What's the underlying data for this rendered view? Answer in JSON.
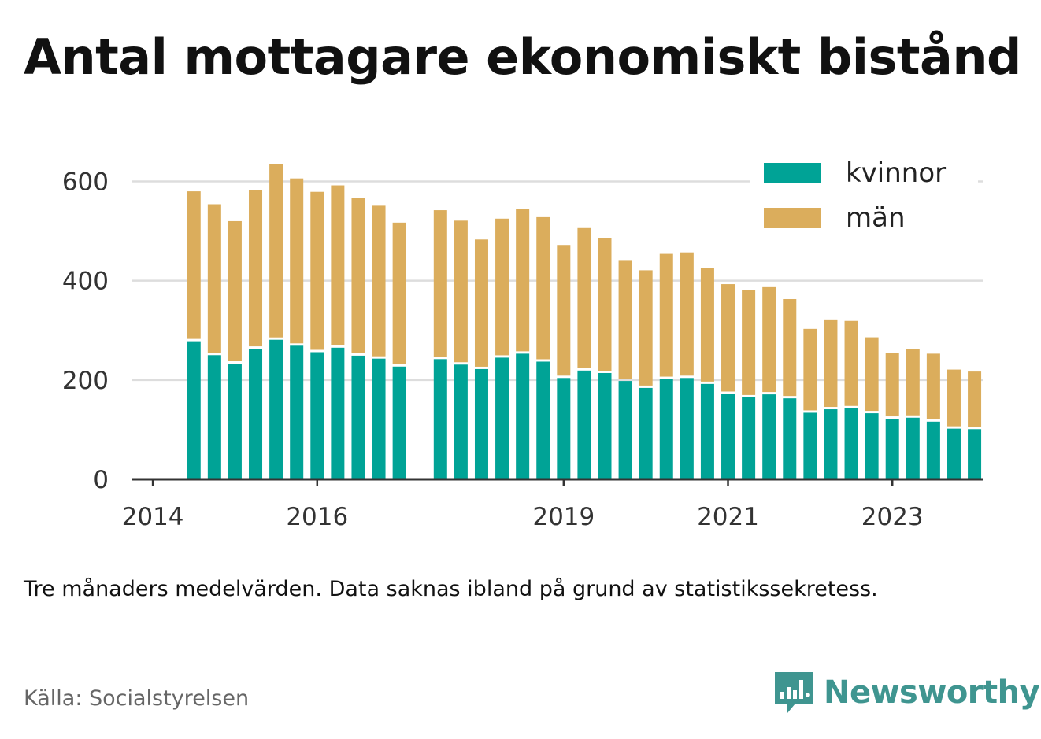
{
  "header": {
    "title": "Antal mottagare ekonomiskt bistånd"
  },
  "footer": {
    "note": "Tre månaders medelvärden. Data saknas ibland på grund av statistikssekretess.",
    "source": "Källa: Socialstyrelsen",
    "brand": "Newsworthy"
  },
  "colors": {
    "kvinnor": "#00a396",
    "man": "#dbad5c",
    "grid": "#dddddd",
    "axis": "#333333",
    "brand": "#3f9590"
  },
  "chart_data": {
    "type": "bar",
    "stacked": true,
    "ylim": [
      0,
      680
    ],
    "yticks": [
      "0",
      "200",
      "400",
      "600"
    ],
    "xticks": [
      "2014",
      "2016",
      "2019",
      "2021",
      "2023"
    ],
    "xlim": [
      2013.75,
      2024.1
    ],
    "grid": true,
    "legend_position": "top-right",
    "x": [
      2014.5,
      2014.75,
      2015.0,
      2015.25,
      2015.5,
      2015.75,
      2016.0,
      2016.25,
      2016.5,
      2016.75,
      2017.0,
      2017.5,
      2017.75,
      2018.0,
      2018.25,
      2018.5,
      2018.75,
      2019.0,
      2019.25,
      2019.5,
      2019.75,
      2020.0,
      2020.25,
      2020.5,
      2020.75,
      2021.0,
      2021.25,
      2021.5,
      2021.75,
      2022.0,
      2022.25,
      2022.5,
      2022.75,
      2023.0,
      2023.25,
      2023.5,
      2023.75,
      2024.0
    ],
    "series": [
      {
        "name": "kvinnor",
        "color": "#00a396",
        "values": [
          278,
          250,
          233,
          263,
          281,
          269,
          256,
          265,
          249,
          243,
          227,
          242,
          231,
          222,
          245,
          253,
          237,
          204,
          219,
          214,
          198,
          184,
          202,
          204,
          192,
          172,
          165,
          171,
          163,
          134,
          141,
          143,
          133,
          122,
          124,
          116,
          102,
          101
        ]
      },
      {
        "name": "män",
        "color": "#dbad5c",
        "values": [
          302,
          304,
          287,
          319,
          354,
          337,
          323,
          327,
          318,
          308,
          290,
          300,
          290,
          261,
          280,
          292,
          291,
          268,
          287,
          272,
          242,
          237,
          252,
          253,
          234,
          221,
          217,
          216,
          200,
          169,
          181,
          176,
          153,
          132,
          138,
          137,
          119,
          116
        ]
      }
    ]
  }
}
